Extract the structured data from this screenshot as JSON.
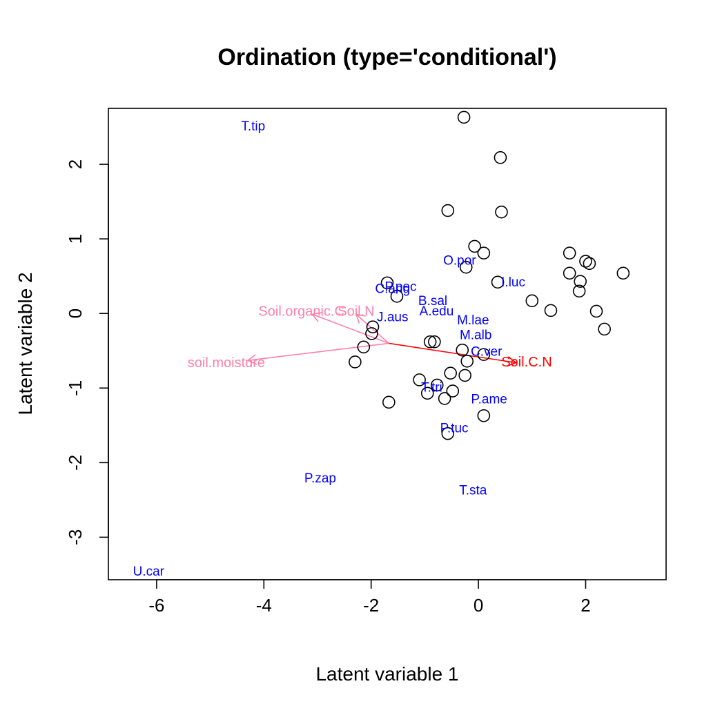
{
  "chart_data": {
    "type": "scatter",
    "title": "Ordination (type='conditional')",
    "xlabel": "Latent variable 1",
    "ylabel": "Latent variable 2",
    "xlim": [
      -6.9,
      3.5
    ],
    "ylim": [
      -3.57,
      2.75
    ],
    "xticks": [
      -6,
      -4,
      -2,
      0,
      2
    ],
    "yticks": [
      -3,
      -2,
      -1,
      0,
      1,
      2
    ],
    "grid": false,
    "legend": "none",
    "colors": {
      "points": "#000000",
      "species": "#0000ff",
      "env_pink": "#ff7fa8",
      "env_red": "#ff0000",
      "axes": "#000000"
    },
    "sites": [
      {
        "x": -0.27,
        "y": 2.63
      },
      {
        "x": 0.41,
        "y": 2.09
      },
      {
        "x": -0.57,
        "y": 1.38
      },
      {
        "x": 0.43,
        "y": 1.36
      },
      {
        "x": -0.07,
        "y": 0.9
      },
      {
        "x": 0.1,
        "y": 0.81
      },
      {
        "x": 1.7,
        "y": 0.81
      },
      {
        "x": 2.0,
        "y": 0.7
      },
      {
        "x": 2.07,
        "y": 0.67
      },
      {
        "x": -0.23,
        "y": 0.62
      },
      {
        "x": 1.7,
        "y": 0.54
      },
      {
        "x": 2.7,
        "y": 0.54
      },
      {
        "x": 1.9,
        "y": 0.43
      },
      {
        "x": 0.36,
        "y": 0.42
      },
      {
        "x": -1.7,
        "y": 0.41
      },
      {
        "x": 1.88,
        "y": 0.3
      },
      {
        "x": -1.52,
        "y": 0.23
      },
      {
        "x": 1.0,
        "y": 0.17
      },
      {
        "x": 1.35,
        "y": 0.04
      },
      {
        "x": 2.2,
        "y": 0.03
      },
      {
        "x": -1.97,
        "y": -0.18
      },
      {
        "x": 2.35,
        "y": -0.21
      },
      {
        "x": -1.99,
        "y": -0.27
      },
      {
        "x": -0.9,
        "y": -0.38
      },
      {
        "x": -0.82,
        "y": -0.38
      },
      {
        "x": -2.14,
        "y": -0.45
      },
      {
        "x": -0.3,
        "y": -0.49
      },
      {
        "x": 0.1,
        "y": -0.55
      },
      {
        "x": -0.21,
        "y": -0.64
      },
      {
        "x": -2.3,
        "y": -0.65
      },
      {
        "x": -0.52,
        "y": -0.8
      },
      {
        "x": -0.25,
        "y": -0.83
      },
      {
        "x": -1.1,
        "y": -0.89
      },
      {
        "x": -0.77,
        "y": -0.96
      },
      {
        "x": -0.48,
        "y": -1.04
      },
      {
        "x": -0.95,
        "y": -1.07
      },
      {
        "x": -0.63,
        "y": -1.14
      },
      {
        "x": -1.67,
        "y": -1.19
      },
      {
        "x": 0.1,
        "y": -1.37
      },
      {
        "x": -0.57,
        "y": -1.61
      }
    ],
    "species": [
      {
        "label": "T.tip",
        "x": -4.2,
        "y": 2.5
      },
      {
        "label": "O.por",
        "x": -0.35,
        "y": 0.7
      },
      {
        "label": "I.luc",
        "x": 0.65,
        "y": 0.41
      },
      {
        "label": "P.pec",
        "x": -1.45,
        "y": 0.35
      },
      {
        "label": "C.ang",
        "x": -1.6,
        "y": 0.32
      },
      {
        "label": "B.sal",
        "x": -0.85,
        "y": 0.16
      },
      {
        "label": "A.edu",
        "x": -0.78,
        "y": 0.02
      },
      {
        "label": "J.aus",
        "x": -1.6,
        "y": -0.06
      },
      {
        "label": "M.lae",
        "x": -0.1,
        "y": -0.1
      },
      {
        "label": "M.alb",
        "x": -0.05,
        "y": -0.3
      },
      {
        "label": "C.ver",
        "x": 0.15,
        "y": -0.52
      },
      {
        "label": "T.tri",
        "x": -0.87,
        "y": -1.0
      },
      {
        "label": "P.ame",
        "x": 0.2,
        "y": -1.16
      },
      {
        "label": "P.tuc",
        "x": -0.45,
        "y": -1.55
      },
      {
        "label": "P.zap",
        "x": -2.95,
        "y": -2.22
      },
      {
        "label": "T.sta",
        "x": -0.1,
        "y": -2.38
      },
      {
        "label": "U.car",
        "x": -6.15,
        "y": -3.47
      }
    ],
    "env_vectors": [
      {
        "label": "Soil.organic.C",
        "x": -3.1,
        "y": -0.01,
        "label_x": -3.3,
        "label_y": 0.02,
        "color": "#ff7fa8"
      },
      {
        "label": "Soil.N",
        "x": -2.28,
        "y": -0.01,
        "label_x": -2.28,
        "label_y": 0.02,
        "color": "#ff7fa8"
      },
      {
        "label": "soil.moisture",
        "x": -4.3,
        "y": -0.63,
        "label_x": -4.7,
        "label_y": -0.67,
        "color": "#ff7fa8"
      },
      {
        "label": "Soil.C.N",
        "x": 0.7,
        "y": -0.66,
        "label_x": 0.9,
        "label_y": -0.66,
        "color": "#ff0000"
      }
    ],
    "env_origin": {
      "x": -1.67,
      "y": -0.4
    }
  }
}
